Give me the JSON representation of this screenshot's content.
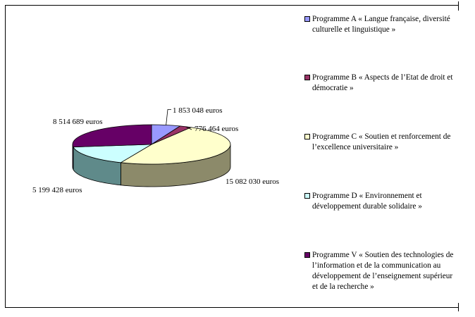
{
  "chart_data": {
    "type": "pie",
    "style": "3d",
    "unit": "euros",
    "slices": [
      {
        "label": "Programme A « Langue française, diversité culturelle et linguistique »",
        "value": 1853048,
        "value_label": "1 853 048 euros",
        "color": "#9999ff",
        "side": "#5e5eb0"
      },
      {
        "label": "Programme B « Aspects de l’Etat de droit et démocratie »",
        "value": 776464,
        "value_label": "776 464 euros",
        "color": "#993366",
        "side": "#5a1e3c"
      },
      {
        "label": "Programme C « Soutien et renforcement de l’excellence universitaire »",
        "value": 15082030,
        "value_label": "15 082 030 euros",
        "color": "#ffffcc",
        "side": "#8c8a6a"
      },
      {
        "label": "Programme D « Environnement et développement durable solidaire »",
        "value": 5199428,
        "value_label": "5 199 428 euros",
        "color": "#ccffff",
        "side": "#5f8a8a"
      },
      {
        "label": "Programme V « Soutien des technologies de l’information et de la communication au développement de l’enseignement supérieur et de la recherche »",
        "value": 8514689,
        "value_label": "8 514 689 euros",
        "color": "#660066",
        "side": "#3c003c"
      }
    ]
  }
}
